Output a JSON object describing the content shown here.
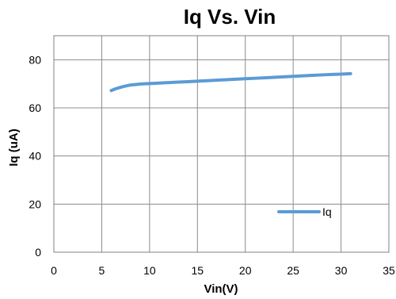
{
  "chart_data": {
    "type": "line",
    "title": "Iq Vs. Vin",
    "xlabel": "Vin(V)",
    "ylabel": "Iq (uA)",
    "xlim": [
      0,
      35
    ],
    "ylim": [
      0,
      90
    ],
    "xticks": [
      0,
      5,
      10,
      15,
      20,
      25,
      30,
      35
    ],
    "yticks": [
      0,
      20,
      40,
      60,
      80
    ],
    "grid": true,
    "legend_position": "bottom-right",
    "series": [
      {
        "name": "Iq",
        "color": "#5b9bd5",
        "x": [
          6,
          6.5,
          7,
          7.5,
          8,
          8.5,
          9,
          9.5,
          10,
          11,
          12,
          13,
          14,
          15,
          16,
          17,
          18,
          19,
          20,
          21,
          22,
          23,
          24,
          25,
          26,
          27,
          28,
          29,
          30,
          31
        ],
        "y": [
          67.2,
          68.0,
          68.6,
          69.1,
          69.5,
          69.7,
          69.9,
          70.0,
          70.1,
          70.3,
          70.5,
          70.7,
          70.9,
          71.1,
          71.3,
          71.5,
          71.7,
          71.9,
          72.1,
          72.3,
          72.5,
          72.7,
          72.9,
          73.1,
          73.3,
          73.5,
          73.7,
          73.9,
          74.0,
          74.2
        ]
      }
    ]
  }
}
